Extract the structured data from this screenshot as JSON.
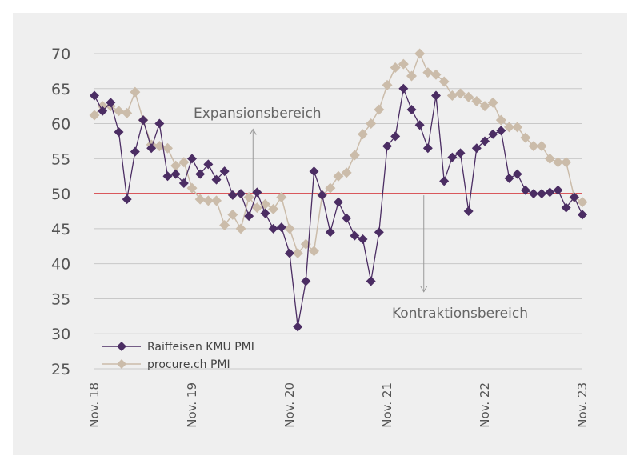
{
  "chart_data": {
    "type": "line",
    "title": "",
    "xlabel": "",
    "ylabel": "",
    "ylim": [
      25,
      70
    ],
    "yticks": [
      25,
      30,
      35,
      40,
      45,
      50,
      55,
      60,
      65,
      70
    ],
    "xticks": [
      "Nov. 18",
      "Nov. 19",
      "Nov. 20",
      "Nov. 21",
      "Nov. 22",
      "Nov. 23"
    ],
    "x": [
      "2018-11",
      "2018-12",
      "2019-01",
      "2019-02",
      "2019-03",
      "2019-04",
      "2019-05",
      "2019-06",
      "2019-07",
      "2019-08",
      "2019-09",
      "2019-10",
      "2019-11",
      "2019-12",
      "2020-01",
      "2020-02",
      "2020-03",
      "2020-04",
      "2020-05",
      "2020-06",
      "2020-07",
      "2020-08",
      "2020-09",
      "2020-10",
      "2020-11",
      "2020-12",
      "2021-01",
      "2021-02",
      "2021-03",
      "2021-04",
      "2021-05",
      "2021-06",
      "2021-07",
      "2021-08",
      "2021-09",
      "2021-10",
      "2021-11",
      "2021-12",
      "2022-01",
      "2022-02",
      "2022-03",
      "2022-04",
      "2022-05",
      "2022-06",
      "2022-07",
      "2022-08",
      "2022-09",
      "2022-10",
      "2022-11",
      "2022-12",
      "2023-01",
      "2023-02",
      "2023-03",
      "2023-04",
      "2023-05",
      "2023-06",
      "2023-07",
      "2023-08",
      "2023-09",
      "2023-10",
      "2023-11"
    ],
    "series": [
      {
        "name": "Raiffeisen KMU PMI",
        "color": "#4b2d63",
        "values": [
          64.0,
          61.8,
          63.0,
          58.8,
          49.2,
          56.0,
          60.5,
          56.5,
          60.0,
          52.5,
          52.8,
          51.5,
          55.0,
          52.8,
          54.2,
          52.0,
          53.2,
          49.8,
          50.0,
          46.8,
          50.2,
          47.2,
          45.0,
          45.2,
          41.5,
          31.0,
          37.5,
          53.2,
          49.8,
          44.5,
          48.8,
          46.5,
          44.0,
          43.5,
          37.5,
          44.5,
          56.8,
          58.2,
          65.0,
          62.0,
          59.8,
          56.5,
          64.0,
          51.8,
          55.2,
          55.8,
          47.5,
          56.5,
          57.5,
          58.5,
          59.0,
          52.2,
          52.8,
          50.5,
          50.0,
          50.0,
          50.2,
          50.5,
          48.0,
          49.5,
          47.0
        ]
      },
      {
        "name": "procure.ch PMI",
        "color": "#cbbcaa",
        "values": [
          61.2,
          62.5,
          62.5,
          61.8,
          61.5,
          64.5,
          60.5,
          57.0,
          56.8,
          56.5,
          54.0,
          54.5,
          50.8,
          49.2,
          49.0,
          49.0,
          45.5,
          47.0,
          45.0,
          49.5,
          48.0,
          48.5,
          47.8,
          49.5,
          45.0,
          41.5,
          42.8,
          41.8,
          49.8,
          50.8,
          52.5,
          53.0,
          55.5,
          58.5,
          60.0,
          62.0,
          65.5,
          68.0,
          68.5,
          66.8,
          70.0,
          67.3,
          67.0,
          66.0,
          64.0,
          64.3,
          63.8,
          63.2,
          62.5,
          63.0,
          60.5,
          59.5,
          59.5,
          58.0,
          56.8,
          56.8,
          55.0,
          54.5,
          54.5,
          49.5,
          48.8
        ]
      }
    ],
    "reference_line": {
      "value": 50,
      "color": "#d2272b"
    },
    "annotations": [
      {
        "text": "Expansionsbereich",
        "direction": "up"
      },
      {
        "text": "Kontraktionsbereich",
        "direction": "down"
      }
    ],
    "legend_position": "bottom-left",
    "grid": "horizontal"
  }
}
